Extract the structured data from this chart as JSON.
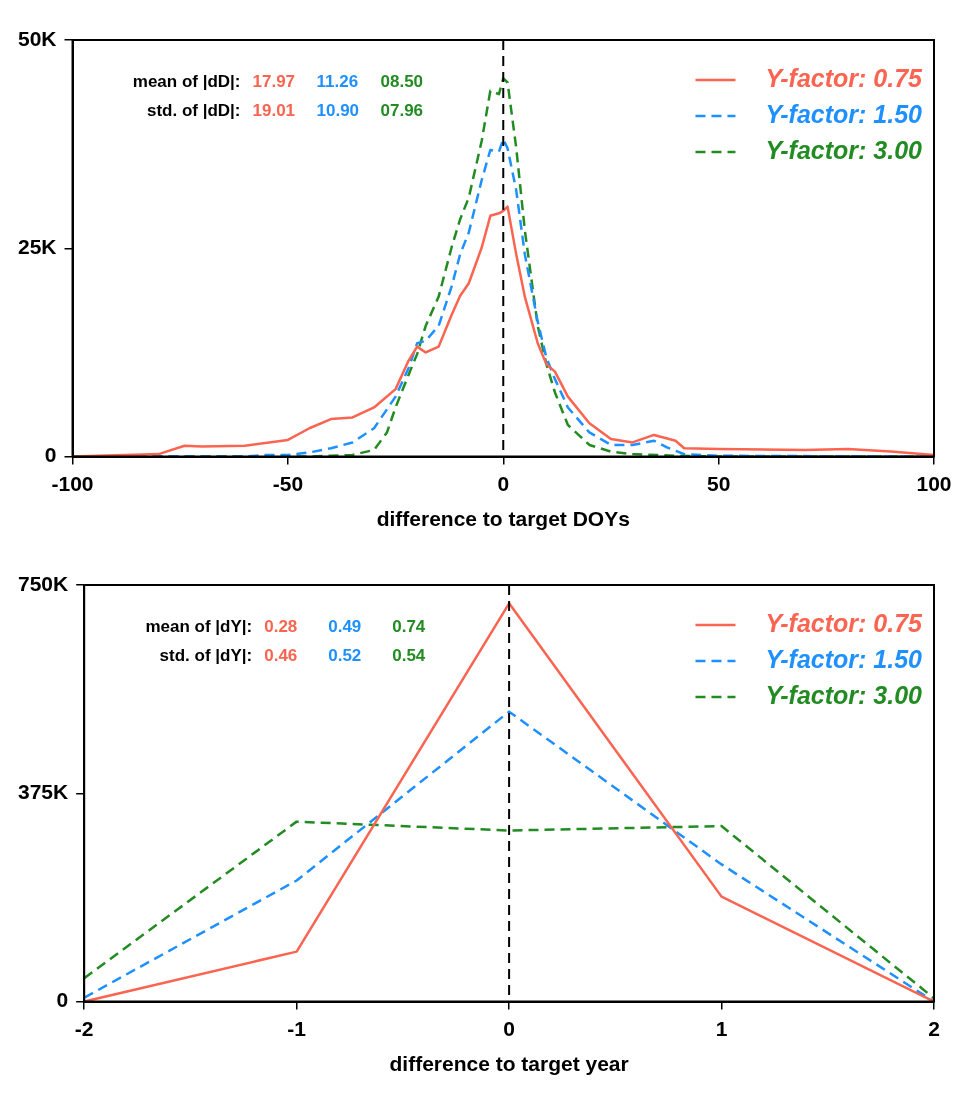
{
  "chart_data": [
    {
      "type": "line",
      "xlabel": "difference to target DOYs",
      "xlim": [
        -100,
        100
      ],
      "xticks": [
        -100,
        -50,
        0,
        50,
        100
      ],
      "ylim": [
        0,
        50000
      ],
      "yticks": [
        {
          "value": 0,
          "label": "0"
        },
        {
          "value": 25000,
          "label": "25K"
        },
        {
          "value": 50000,
          "label": "50K"
        }
      ],
      "legend": "top right",
      "marker": "none",
      "annotations": [
        "mean of |dD|:",
        "17.97",
        "11.26",
        "08.50",
        "std. of |dD|:",
        "19.01",
        "10.90",
        "07.96"
      ],
      "ref_lines": [
        {
          "axis": "x",
          "value": 0,
          "color": "#000000",
          "line_style": "dashed"
        }
      ],
      "series": [
        {
          "name": "Y-factor: 0.75",
          "color": "#fa6450",
          "line_style": "solid",
          "x": [
            -100,
            -80,
            -74,
            -70,
            -60,
            -50,
            -45,
            -40,
            -35,
            -30,
            -25,
            -22,
            -20,
            -18,
            -15,
            -12,
            -10,
            -8,
            -5,
            -3,
            -1,
            0,
            1,
            3,
            5,
            8,
            10,
            12,
            15,
            20,
            25,
            30,
            35,
            40,
            42,
            50,
            70,
            80,
            90,
            100
          ],
          "values": [
            0,
            300,
            1300,
            1200,
            1300,
            2000,
            3400,
            4500,
            4700,
            5900,
            8100,
            11500,
            13200,
            12500,
            13200,
            17000,
            19300,
            20800,
            25100,
            28900,
            29200,
            29500,
            30000,
            24300,
            19200,
            13600,
            11100,
            10200,
            7200,
            4000,
            2100,
            1700,
            2600,
            1900,
            1000,
            900,
            800,
            900,
            600,
            200
          ]
        },
        {
          "name": "Y-factor: 1.50",
          "color": "#1e90ff",
          "line_style": "dashed",
          "x": [
            -100,
            -60,
            -55,
            -50,
            -45,
            -40,
            -35,
            -30,
            -25,
            -22,
            -20,
            -18,
            -15,
            -12,
            -10,
            -8,
            -5,
            -3,
            -1,
            0,
            1,
            3,
            5,
            8,
            10,
            12,
            15,
            20,
            25,
            30,
            35,
            38,
            42,
            50,
            100
          ],
          "values": [
            0,
            0,
            200,
            200,
            500,
            1000,
            1700,
            3400,
            7200,
            10600,
            13600,
            13900,
            15700,
            20400,
            24300,
            26900,
            33200,
            36800,
            36600,
            38100,
            37000,
            32000,
            24300,
            16200,
            11900,
            9300,
            5900,
            2900,
            1400,
            1400,
            1900,
            1100,
            300,
            100,
            0
          ]
        },
        {
          "name": "Y-factor: 3.00",
          "color": "#228b22",
          "line_style": "dashed",
          "x": [
            -100,
            -45,
            -40,
            -35,
            -30,
            -27,
            -25,
            -22,
            -20,
            -18,
            -15,
            -12,
            -10,
            -8,
            -5,
            -3,
            -1,
            0,
            1,
            3,
            5,
            8,
            10,
            12,
            15,
            20,
            25,
            30,
            40,
            50,
            100
          ],
          "values": [
            0,
            0,
            100,
            200,
            800,
            2900,
            5900,
            9800,
            12300,
            15700,
            19200,
            25100,
            28500,
            31100,
            37900,
            43900,
            43500,
            45400,
            44900,
            37100,
            27200,
            15700,
            11100,
            7700,
            3800,
            1400,
            600,
            300,
            100,
            0,
            0
          ]
        }
      ]
    },
    {
      "type": "line",
      "xlabel": "difference to target year",
      "xlim": [
        -2,
        2
      ],
      "xticks": [
        -2,
        -1,
        0,
        1,
        2
      ],
      "ylim": [
        0,
        750000
      ],
      "yticks": [
        {
          "value": 0,
          "label": "0"
        },
        {
          "value": 375000,
          "label": "375K"
        },
        {
          "value": 750000,
          "label": "750K"
        }
      ],
      "legend": "top right",
      "marker": "none",
      "annotations": [
        "mean of |dY|:",
        "0.28",
        "0.49",
        "0.74",
        "std. of |dY|:",
        "0.46",
        "0.52",
        "0.54"
      ],
      "ref_lines": [
        {
          "axis": "x",
          "value": 0,
          "color": "#000000",
          "line_style": "dashed"
        }
      ],
      "series": [
        {
          "name": "Y-factor: 0.75",
          "color": "#fa6450",
          "line_style": "solid",
          "x": [
            -2,
            -1,
            0,
            1,
            2
          ],
          "values": [
            0,
            90000,
            717000,
            189000,
            0
          ]
        },
        {
          "name": "Y-factor: 1.50",
          "color": "#1e90ff",
          "line_style": "dashed",
          "x": [
            -2,
            -1,
            0,
            1,
            2
          ],
          "values": [
            7000,
            218000,
            522000,
            247000,
            0
          ]
        },
        {
          "name": "Y-factor: 3.00",
          "color": "#228b22",
          "line_style": "dashed",
          "x": [
            -2,
            -1,
            0,
            1,
            2
          ],
          "values": [
            42000,
            324000,
            308000,
            316000,
            6000
          ]
        }
      ]
    }
  ]
}
